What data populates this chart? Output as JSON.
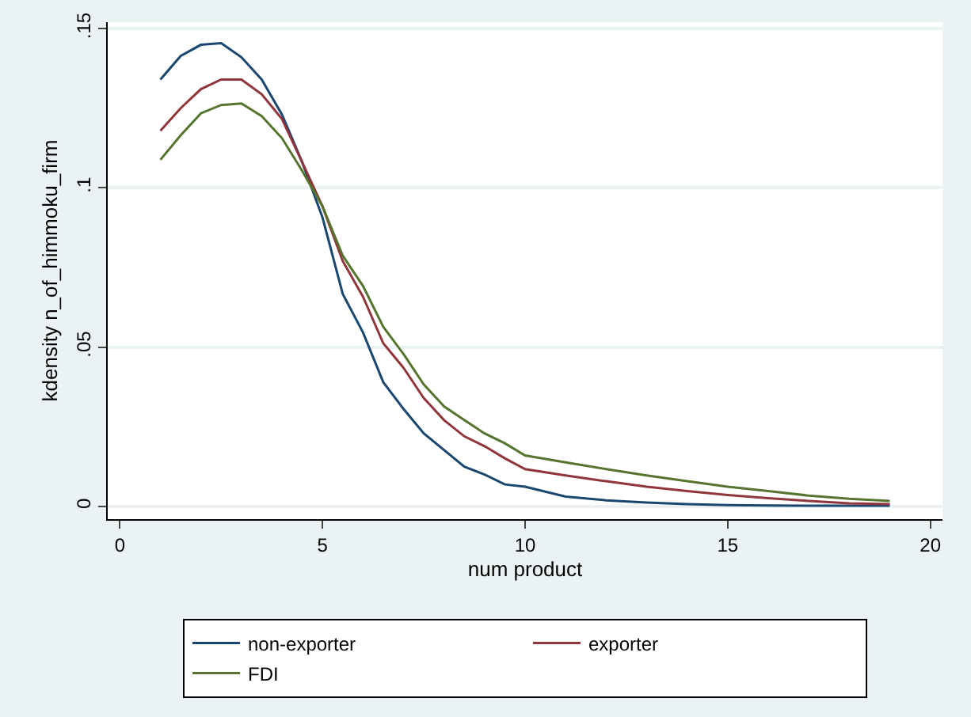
{
  "chart_data": {
    "type": "line",
    "xlabel": "num product",
    "ylabel": "kdensity n_of_himmoku_firm",
    "xlim": [
      -0.3,
      20.3
    ],
    "xticks": [
      0,
      5,
      10,
      15,
      20
    ],
    "ylim": [
      -0.004,
      0.152
    ],
    "yticks": [
      {
        "value": 0,
        "label": "0"
      },
      {
        "value": 0.05,
        "label": ".05"
      },
      {
        "value": 0.1,
        "label": ".1"
      },
      {
        "value": 0.15,
        "label": ".15"
      }
    ],
    "grid": "y",
    "legend": "bottom",
    "line_style": "solid",
    "x": [
      1,
      1.5,
      2,
      2.5,
      3,
      3.5,
      4,
      4.5,
      5,
      5.5,
      6,
      6.5,
      7,
      7.5,
      8,
      8.5,
      9,
      9.5,
      10,
      11,
      12,
      13,
      14,
      15,
      16,
      17,
      18,
      19
    ],
    "series": [
      {
        "name": "non-exporter",
        "color": "#1a476f",
        "values": [
          0.134,
          0.1414,
          0.1449,
          0.1454,
          0.141,
          0.134,
          0.123,
          0.108,
          0.0907,
          0.0667,
          0.0546,
          0.039,
          0.0306,
          0.0229,
          0.0177,
          0.0125,
          0.01,
          0.0069,
          0.0062,
          0.0031,
          0.0019,
          0.0012,
          0.0007,
          0.0004,
          0.0003,
          0.0002,
          0.0002,
          0.0002
        ]
      },
      {
        "name": "exporter",
        "color": "#90353b",
        "values": [
          0.1179,
          0.125,
          0.131,
          0.134,
          0.134,
          0.1294,
          0.1216,
          0.108,
          0.0942,
          0.077,
          0.0658,
          0.0512,
          0.0435,
          0.034,
          0.0271,
          0.022,
          0.0189,
          0.0151,
          0.0117,
          0.0097,
          0.0079,
          0.0062,
          0.0048,
          0.0036,
          0.0026,
          0.0017,
          0.001,
          0.0007
        ]
      },
      {
        "name": "FDI",
        "color": "#55752f",
        "values": [
          0.1088,
          0.1165,
          0.1234,
          0.126,
          0.1265,
          0.1225,
          0.1156,
          0.1053,
          0.0942,
          0.0787,
          0.0692,
          0.0564,
          0.0478,
          0.0383,
          0.0314,
          0.0271,
          0.0229,
          0.0198,
          0.016,
          0.0138,
          0.0117,
          0.0097,
          0.0079,
          0.0062,
          0.0048,
          0.0034,
          0.0024,
          0.0017
        ]
      }
    ]
  }
}
